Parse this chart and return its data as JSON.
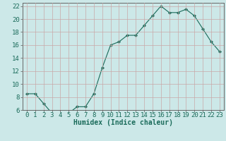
{
  "x": [
    0,
    1,
    2,
    3,
    4,
    5,
    6,
    7,
    8,
    9,
    10,
    11,
    12,
    13,
    14,
    15,
    16,
    17,
    18,
    19,
    20,
    21,
    22,
    23
  ],
  "y": [
    8.5,
    8.5,
    7,
    5.5,
    5.5,
    5.5,
    6.5,
    6.5,
    8.5,
    12.5,
    16,
    16.5,
    17.5,
    17.5,
    19,
    20.5,
    22,
    21,
    21,
    21.5,
    20.5,
    18.5,
    16.5,
    15
  ],
  "line_color": "#1a6b5a",
  "marker": "D",
  "marker_size": 2.0,
  "bg_color": "#cce8e8",
  "grid_color": "#c8a8a8",
  "xlabel": "Humidex (Indice chaleur)",
  "xlim_min": -0.5,
  "xlim_max": 23.5,
  "ylim_min": 6,
  "ylim_max": 22.5,
  "xticks": [
    0,
    1,
    2,
    3,
    4,
    5,
    6,
    7,
    8,
    9,
    10,
    11,
    12,
    13,
    14,
    15,
    16,
    17,
    18,
    19,
    20,
    21,
    22,
    23
  ],
  "yticks": [
    6,
    8,
    10,
    12,
    14,
    16,
    18,
    20,
    22
  ],
  "xlabel_fontsize": 7,
  "tick_fontsize": 6.5
}
